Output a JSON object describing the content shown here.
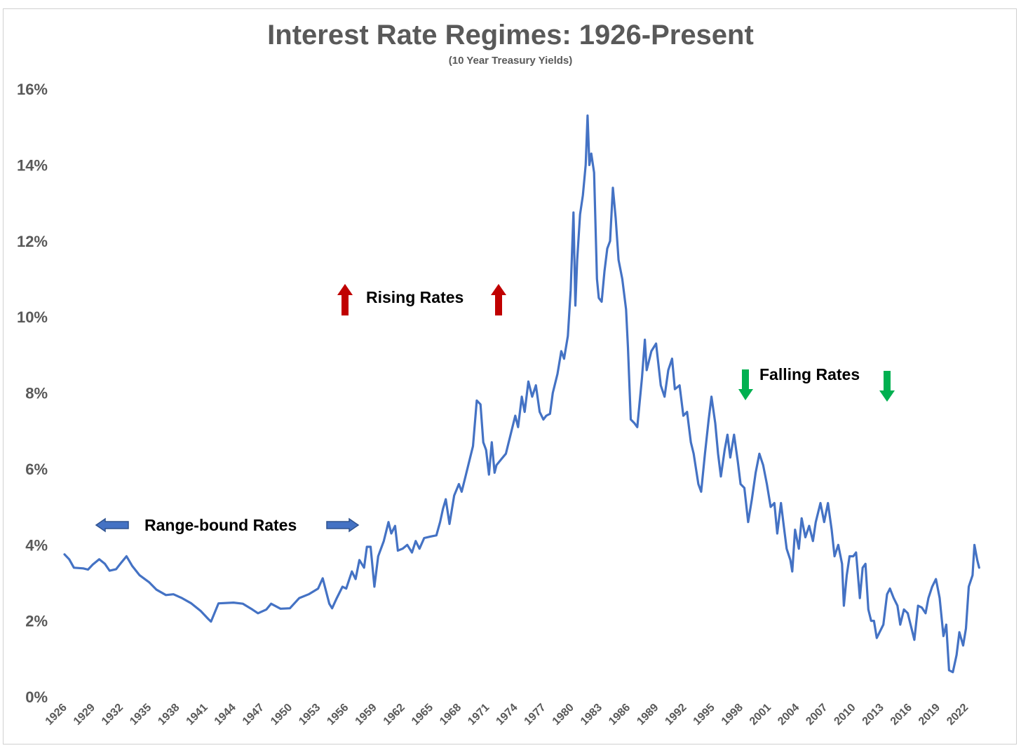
{
  "chart_data": {
    "type": "line",
    "title": "Interest Rate Regimes: 1926-Present",
    "subtitle": "(10 Year Treasury Yields)",
    "xlabel": "",
    "ylabel": "",
    "x_range": [
      1926,
      2024.5
    ],
    "ylim": [
      0,
      16
    ],
    "y_ticks": [
      0,
      2,
      4,
      6,
      8,
      10,
      12,
      14,
      16
    ],
    "y_tick_labels": [
      "0%",
      "2%",
      "4%",
      "6%",
      "8%",
      "10%",
      "12%",
      "14%",
      "16%"
    ],
    "x_tick_labels": [
      "1926",
      "1929",
      "1932",
      "1935",
      "1938",
      "1941",
      "1944",
      "1947",
      "1950",
      "1953",
      "1956",
      "1959",
      "1962",
      "1965",
      "1968",
      "1971",
      "1974",
      "1977",
      "1980",
      "1983",
      "1986",
      "1989",
      "1992",
      "1995",
      "1998",
      "2001",
      "2004",
      "2007",
      "2010",
      "2013",
      "2016",
      "2019",
      "2022"
    ],
    "grid": false,
    "legend": "none",
    "line_color": "#4472C4",
    "series": [
      {
        "points": [
          [
            1926.0,
            3.75
          ],
          [
            1926.5,
            3.62
          ],
          [
            1927.0,
            3.4
          ],
          [
            1928.0,
            3.38
          ],
          [
            1928.5,
            3.35
          ],
          [
            1929.0,
            3.48
          ],
          [
            1929.7,
            3.62
          ],
          [
            1930.3,
            3.5
          ],
          [
            1930.8,
            3.32
          ],
          [
            1931.5,
            3.36
          ],
          [
            1932.0,
            3.52
          ],
          [
            1932.6,
            3.7
          ],
          [
            1933.2,
            3.45
          ],
          [
            1934.0,
            3.2
          ],
          [
            1935.0,
            3.02
          ],
          [
            1935.8,
            2.82
          ],
          [
            1936.8,
            2.68
          ],
          [
            1937.6,
            2.7
          ],
          [
            1938.5,
            2.6
          ],
          [
            1939.5,
            2.46
          ],
          [
            1940.5,
            2.26
          ],
          [
            1941.3,
            2.05
          ],
          [
            1941.6,
            1.98
          ],
          [
            1942.4,
            2.46
          ],
          [
            1944.0,
            2.48
          ],
          [
            1945.0,
            2.45
          ],
          [
            1946.0,
            2.3
          ],
          [
            1946.6,
            2.2
          ],
          [
            1947.5,
            2.3
          ],
          [
            1948.0,
            2.45
          ],
          [
            1949.0,
            2.32
          ],
          [
            1950.0,
            2.33
          ],
          [
            1951.0,
            2.6
          ],
          [
            1952.0,
            2.7
          ],
          [
            1953.0,
            2.85
          ],
          [
            1953.5,
            3.12
          ],
          [
            1954.2,
            2.45
          ],
          [
            1954.5,
            2.33
          ],
          [
            1955.0,
            2.6
          ],
          [
            1955.6,
            2.9
          ],
          [
            1956.0,
            2.85
          ],
          [
            1956.6,
            3.3
          ],
          [
            1957.0,
            3.1
          ],
          [
            1957.4,
            3.6
          ],
          [
            1957.9,
            3.4
          ],
          [
            1958.2,
            3.95
          ],
          [
            1958.6,
            3.95
          ],
          [
            1959.0,
            2.9
          ],
          [
            1959.4,
            3.7
          ],
          [
            1960.0,
            4.1
          ],
          [
            1960.5,
            4.6
          ],
          [
            1960.8,
            4.3
          ],
          [
            1961.2,
            4.5
          ],
          [
            1961.5,
            3.85
          ],
          [
            1962.0,
            3.9
          ],
          [
            1962.5,
            4.0
          ],
          [
            1963.0,
            3.8
          ],
          [
            1963.4,
            4.1
          ],
          [
            1963.8,
            3.9
          ],
          [
            1964.3,
            4.18
          ],
          [
            1965.0,
            4.22
          ],
          [
            1965.6,
            4.25
          ],
          [
            1966.0,
            4.6
          ],
          [
            1966.3,
            4.95
          ],
          [
            1966.6,
            5.2
          ],
          [
            1967.0,
            4.55
          ],
          [
            1967.5,
            5.3
          ],
          [
            1968.0,
            5.6
          ],
          [
            1968.3,
            5.4
          ],
          [
            1968.7,
            5.8
          ],
          [
            1969.0,
            6.1
          ],
          [
            1969.5,
            6.6
          ],
          [
            1969.9,
            7.8
          ],
          [
            1970.3,
            7.7
          ],
          [
            1970.6,
            6.7
          ],
          [
            1970.9,
            6.5
          ],
          [
            1971.2,
            5.85
          ],
          [
            1971.5,
            6.7
          ],
          [
            1971.8,
            5.9
          ],
          [
            1972.0,
            6.1
          ],
          [
            1972.5,
            6.25
          ],
          [
            1973.0,
            6.4
          ],
          [
            1973.5,
            6.9
          ],
          [
            1974.0,
            7.4
          ],
          [
            1974.3,
            7.1
          ],
          [
            1974.7,
            7.9
          ],
          [
            1975.0,
            7.5
          ],
          [
            1975.4,
            8.3
          ],
          [
            1975.8,
            7.9
          ],
          [
            1976.2,
            8.2
          ],
          [
            1976.6,
            7.5
          ],
          [
            1977.0,
            7.3
          ],
          [
            1977.3,
            7.4
          ],
          [
            1977.7,
            7.45
          ],
          [
            1978.0,
            8.0
          ],
          [
            1978.5,
            8.5
          ],
          [
            1978.9,
            9.1
          ],
          [
            1979.2,
            8.9
          ],
          [
            1979.6,
            9.5
          ],
          [
            1979.9,
            10.7
          ],
          [
            1980.2,
            12.75
          ],
          [
            1980.4,
            10.3
          ],
          [
            1980.6,
            11.5
          ],
          [
            1980.9,
            12.7
          ],
          [
            1981.2,
            13.2
          ],
          [
            1981.5,
            14.0
          ],
          [
            1981.7,
            15.3
          ],
          [
            1981.9,
            14.0
          ],
          [
            1982.1,
            14.3
          ],
          [
            1982.4,
            13.8
          ],
          [
            1982.7,
            11.0
          ],
          [
            1982.9,
            10.5
          ],
          [
            1983.2,
            10.4
          ],
          [
            1983.5,
            11.2
          ],
          [
            1983.8,
            11.8
          ],
          [
            1984.1,
            12.0
          ],
          [
            1984.4,
            13.4
          ],
          [
            1984.7,
            12.6
          ],
          [
            1985.0,
            11.5
          ],
          [
            1985.4,
            11.0
          ],
          [
            1985.8,
            10.2
          ],
          [
            1986.0,
            9.2
          ],
          [
            1986.3,
            7.3
          ],
          [
            1986.7,
            7.2
          ],
          [
            1987.0,
            7.1
          ],
          [
            1987.5,
            8.4
          ],
          [
            1987.8,
            9.4
          ],
          [
            1988.0,
            8.6
          ],
          [
            1988.5,
            9.1
          ],
          [
            1989.0,
            9.3
          ],
          [
            1989.5,
            8.2
          ],
          [
            1989.9,
            7.9
          ],
          [
            1990.3,
            8.6
          ],
          [
            1990.7,
            8.9
          ],
          [
            1991.0,
            8.1
          ],
          [
            1991.5,
            8.2
          ],
          [
            1991.9,
            7.4
          ],
          [
            1992.3,
            7.5
          ],
          [
            1992.7,
            6.7
          ],
          [
            1993.0,
            6.4
          ],
          [
            1993.5,
            5.6
          ],
          [
            1993.8,
            5.4
          ],
          [
            1994.2,
            6.4
          ],
          [
            1994.6,
            7.3
          ],
          [
            1994.9,
            7.9
          ],
          [
            1995.3,
            7.2
          ],
          [
            1995.6,
            6.4
          ],
          [
            1995.9,
            5.8
          ],
          [
            1996.3,
            6.5
          ],
          [
            1996.6,
            6.9
          ],
          [
            1996.9,
            6.3
          ],
          [
            1997.3,
            6.9
          ],
          [
            1997.7,
            6.2
          ],
          [
            1998.0,
            5.6
          ],
          [
            1998.4,
            5.5
          ],
          [
            1998.8,
            4.6
          ],
          [
            1999.2,
            5.2
          ],
          [
            1999.6,
            5.9
          ],
          [
            2000.0,
            6.4
          ],
          [
            2000.4,
            6.1
          ],
          [
            2000.8,
            5.6
          ],
          [
            2001.2,
            5.0
          ],
          [
            2001.6,
            5.1
          ],
          [
            2001.9,
            4.3
          ],
          [
            2002.3,
            5.1
          ],
          [
            2002.6,
            4.5
          ],
          [
            2002.9,
            3.9
          ],
          [
            2003.3,
            3.6
          ],
          [
            2003.5,
            3.3
          ],
          [
            2003.8,
            4.4
          ],
          [
            2004.2,
            3.9
          ],
          [
            2004.5,
            4.7
          ],
          [
            2004.9,
            4.2
          ],
          [
            2005.3,
            4.5
          ],
          [
            2005.7,
            4.1
          ],
          [
            2006.0,
            4.6
          ],
          [
            2006.5,
            5.1
          ],
          [
            2006.9,
            4.6
          ],
          [
            2007.3,
            5.1
          ],
          [
            2007.7,
            4.4
          ],
          [
            2008.0,
            3.7
          ],
          [
            2008.4,
            4.0
          ],
          [
            2008.8,
            3.5
          ],
          [
            2009.0,
            2.4
          ],
          [
            2009.3,
            3.2
          ],
          [
            2009.6,
            3.7
          ],
          [
            2010.0,
            3.7
          ],
          [
            2010.3,
            3.8
          ],
          [
            2010.7,
            2.6
          ],
          [
            2011.0,
            3.4
          ],
          [
            2011.3,
            3.5
          ],
          [
            2011.6,
            2.3
          ],
          [
            2011.9,
            2.0
          ],
          [
            2012.2,
            2.0
          ],
          [
            2012.5,
            1.55
          ],
          [
            2012.8,
            1.7
          ],
          [
            2013.2,
            1.9
          ],
          [
            2013.6,
            2.7
          ],
          [
            2013.9,
            2.85
          ],
          [
            2014.3,
            2.6
          ],
          [
            2014.7,
            2.4
          ],
          [
            2015.0,
            1.9
          ],
          [
            2015.4,
            2.3
          ],
          [
            2015.8,
            2.2
          ],
          [
            2016.2,
            1.8
          ],
          [
            2016.5,
            1.5
          ],
          [
            2016.9,
            2.4
          ],
          [
            2017.3,
            2.35
          ],
          [
            2017.7,
            2.2
          ],
          [
            2018.0,
            2.6
          ],
          [
            2018.4,
            2.9
          ],
          [
            2018.8,
            3.1
          ],
          [
            2019.2,
            2.6
          ],
          [
            2019.6,
            1.6
          ],
          [
            2019.9,
            1.9
          ],
          [
            2020.2,
            0.7
          ],
          [
            2020.6,
            0.65
          ],
          [
            2021.0,
            1.1
          ],
          [
            2021.3,
            1.7
          ],
          [
            2021.7,
            1.35
          ],
          [
            2022.0,
            1.8
          ],
          [
            2022.3,
            2.9
          ],
          [
            2022.7,
            3.2
          ],
          [
            2022.9,
            4.0
          ],
          [
            2023.2,
            3.6
          ],
          [
            2023.4,
            3.4
          ]
        ]
      }
    ],
    "annotations": [
      {
        "text": "Range-bound Rates",
        "arrow": "double-horizontal",
        "color": "#4472C4"
      },
      {
        "text": "Rising Rates",
        "arrow": "up",
        "color": "#C00000"
      },
      {
        "text": "Falling Rates",
        "arrow": "down",
        "color": "#00B050"
      }
    ]
  }
}
